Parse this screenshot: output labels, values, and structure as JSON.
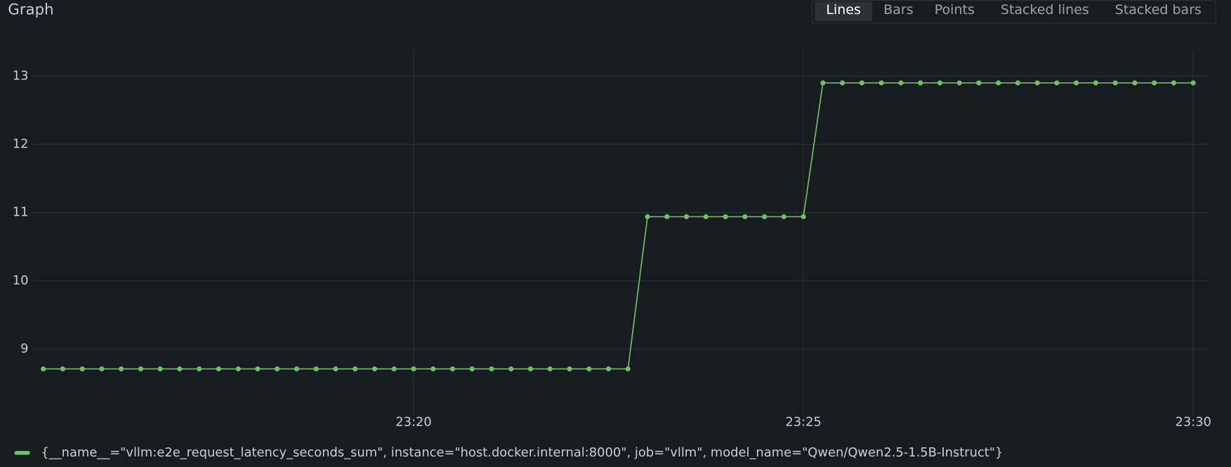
{
  "panel_title": "Graph",
  "view_modes": [
    "Lines",
    "Bars",
    "Points",
    "Stacked lines",
    "Stacked bars"
  ],
  "active_view_mode": "Lines",
  "chart_data": {
    "type": "line",
    "x": [
      1395.25,
      1395.5,
      1395.75,
      1396,
      1396.25,
      1396.5,
      1396.75,
      1397,
      1397.25,
      1397.5,
      1397.75,
      1398,
      1398.25,
      1398.5,
      1398.75,
      1399,
      1399.25,
      1399.5,
      1399.75,
      1400,
      1400.25,
      1400.5,
      1400.75,
      1401,
      1401.25,
      1401.5,
      1401.75,
      1402,
      1402.25,
      1402.5,
      1402.75,
      1403,
      1403.25,
      1403.5,
      1403.75,
      1404,
      1404.25,
      1404.5,
      1404.75,
      1405,
      1405.25,
      1405.5,
      1405.75,
      1406,
      1406.25,
      1406.5,
      1406.75,
      1407,
      1407.25,
      1407.5,
      1407.75,
      1408,
      1408.25,
      1408.5,
      1408.75,
      1409,
      1409.25,
      1409.5,
      1409.75,
      1410
    ],
    "series": [
      {
        "name": "{__name__=\"vllm:e2e_request_latency_seconds_sum\", instance=\"host.docker.internal:8000\", job=\"vllm\", model_name=\"Qwen/Qwen2.5-1.5B-Instruct\"}",
        "color": "#73bf69",
        "values": [
          8.71,
          8.71,
          8.71,
          8.71,
          8.71,
          8.71,
          8.71,
          8.71,
          8.71,
          8.71,
          8.71,
          8.71,
          8.71,
          8.71,
          8.71,
          8.71,
          8.71,
          8.71,
          8.71,
          8.71,
          8.71,
          8.71,
          8.71,
          8.71,
          8.71,
          8.71,
          8.71,
          8.71,
          8.71,
          8.71,
          8.71,
          10.94,
          10.94,
          10.94,
          10.94,
          10.94,
          10.94,
          10.94,
          10.94,
          10.94,
          12.9,
          12.9,
          12.9,
          12.9,
          12.9,
          12.9,
          12.9,
          12.9,
          12.9,
          12.9,
          12.9,
          12.9,
          12.9,
          12.9,
          12.9,
          12.9,
          12.9,
          12.9,
          12.9,
          12.9
        ]
      }
    ],
    "xlim": [
      1395.1,
      1410.2
    ],
    "xticks": [
      {
        "value": 1400,
        "label": "23:20"
      },
      {
        "value": 1405,
        "label": "23:25"
      },
      {
        "value": 1410,
        "label": "23:30"
      }
    ],
    "ylim": [
      8.02,
      13.39
    ],
    "yticks": [
      9,
      10,
      11,
      12,
      13
    ],
    "grid": true,
    "show_points": true,
    "legend": "bottom"
  }
}
